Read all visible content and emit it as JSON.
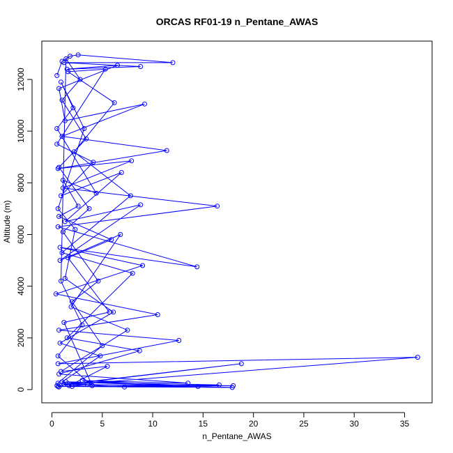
{
  "chart_data": {
    "type": "line",
    "title": "ORCAS RF01-19 n_Pentane_AWAS",
    "xlabel": "n_Pentane_AWAS",
    "ylabel": "Altitude (m)",
    "xlim": [
      0,
      37.5
    ],
    "ylim": [
      0,
      13000
    ],
    "x_ticks": [
      "0",
      "5",
      "10",
      "15",
      "20",
      "25",
      "30",
      "35"
    ],
    "x_tick_values": [
      0,
      5,
      10,
      15,
      20,
      25,
      30,
      35
    ],
    "y_ticks": [
      "0",
      "2000",
      "4000",
      "6000",
      "8000",
      "10000",
      "12000"
    ],
    "y_tick_values": [
      0,
      2000,
      4000,
      6000,
      8000,
      10000,
      12000
    ],
    "grid": false,
    "legend": "none",
    "color": "#0000ff",
    "marker": "open-circle",
    "series": [
      {
        "values": [
          [
            0.5,
            12150
          ],
          [
            1.0,
            12700
          ],
          [
            1.8,
            12900
          ],
          [
            2.6,
            12950
          ],
          [
            12.0,
            12650
          ],
          [
            1.2,
            12650
          ],
          [
            8.8,
            12500
          ],
          [
            1.5,
            12400
          ],
          [
            6.5,
            12550
          ],
          [
            0.7,
            11650
          ],
          [
            1.3,
            10400
          ],
          [
            9.2,
            11050
          ],
          [
            1.0,
            9800
          ],
          [
            11.4,
            9250
          ],
          [
            0.6,
            8550
          ],
          [
            7.9,
            8850
          ],
          [
            1.1,
            7800
          ],
          [
            16.4,
            7100
          ],
          [
            0.6,
            6300
          ],
          [
            14.4,
            4750
          ],
          [
            0.8,
            5500
          ],
          [
            9.0,
            4800
          ],
          [
            0.4,
            3700
          ],
          [
            10.5,
            2900
          ],
          [
            0.7,
            2300
          ],
          [
            12.6,
            1900
          ],
          [
            0.6,
            1000
          ],
          [
            36.3,
            1250
          ],
          [
            0.5,
            150
          ],
          [
            18.8,
            1000
          ],
          [
            1.2,
            200
          ],
          [
            18.0,
            150
          ],
          [
            0.6,
            120
          ],
          [
            17.9,
            80
          ],
          [
            1.4,
            300
          ],
          [
            16.6,
            180
          ],
          [
            2.0,
            120
          ],
          [
            14.5,
            120
          ],
          [
            3.0,
            350
          ],
          [
            13.5,
            250
          ],
          [
            0.7,
            600
          ],
          [
            8.7,
            1500
          ],
          [
            1.5,
            2000
          ],
          [
            8.0,
            4500
          ],
          [
            1.0,
            5300
          ],
          [
            7.8,
            7500
          ],
          [
            2.2,
            9200
          ],
          [
            6.2,
            11100
          ],
          [
            1.6,
            12300
          ],
          [
            5.3,
            12400
          ],
          [
            0.5,
            9500
          ],
          [
            4.1,
            8800
          ],
          [
            0.9,
            7500
          ],
          [
            6.9,
            8400
          ],
          [
            1.3,
            6500
          ],
          [
            8.8,
            7150
          ],
          [
            0.8,
            5000
          ],
          [
            6.8,
            6000
          ],
          [
            1.9,
            3200
          ],
          [
            7.5,
            2300
          ],
          [
            0.9,
            700
          ],
          [
            5.5,
            900
          ],
          [
            1.7,
            150
          ],
          [
            7.2,
            100
          ],
          [
            0.6,
            250
          ],
          [
            5.0,
            1700
          ],
          [
            2.0,
            3400
          ],
          [
            4.6,
            4200
          ],
          [
            1.1,
            6100
          ],
          [
            3.7,
            7000
          ],
          [
            0.7,
            8600
          ],
          [
            3.4,
            9700
          ],
          [
            1.0,
            11200
          ],
          [
            2.8,
            12000
          ],
          [
            1.4,
            12800
          ],
          [
            0.9,
            4200
          ],
          [
            3.0,
            2500
          ],
          [
            0.6,
            1300
          ],
          [
            4.0,
            150
          ],
          [
            1.2,
            2600
          ],
          [
            5.7,
            3000
          ],
          [
            1.6,
            5100
          ],
          [
            5.9,
            5800
          ],
          [
            0.7,
            6700
          ],
          [
            2.6,
            7100
          ],
          [
            1.1,
            8100
          ],
          [
            4.4,
            7600
          ],
          [
            0.5,
            10100
          ],
          [
            2.1,
            10900
          ],
          [
            0.9,
            11900
          ],
          [
            3.2,
            10100
          ],
          [
            0.6,
            7000
          ],
          [
            2.3,
            6200
          ],
          [
            1.3,
            4300
          ],
          [
            6.1,
            3000
          ],
          [
            0.8,
            1800
          ],
          [
            4.8,
            1300
          ],
          [
            1.0,
            300
          ],
          [
            3.5,
            200
          ],
          [
            0.7,
            100
          ]
        ]
      }
    ]
  }
}
